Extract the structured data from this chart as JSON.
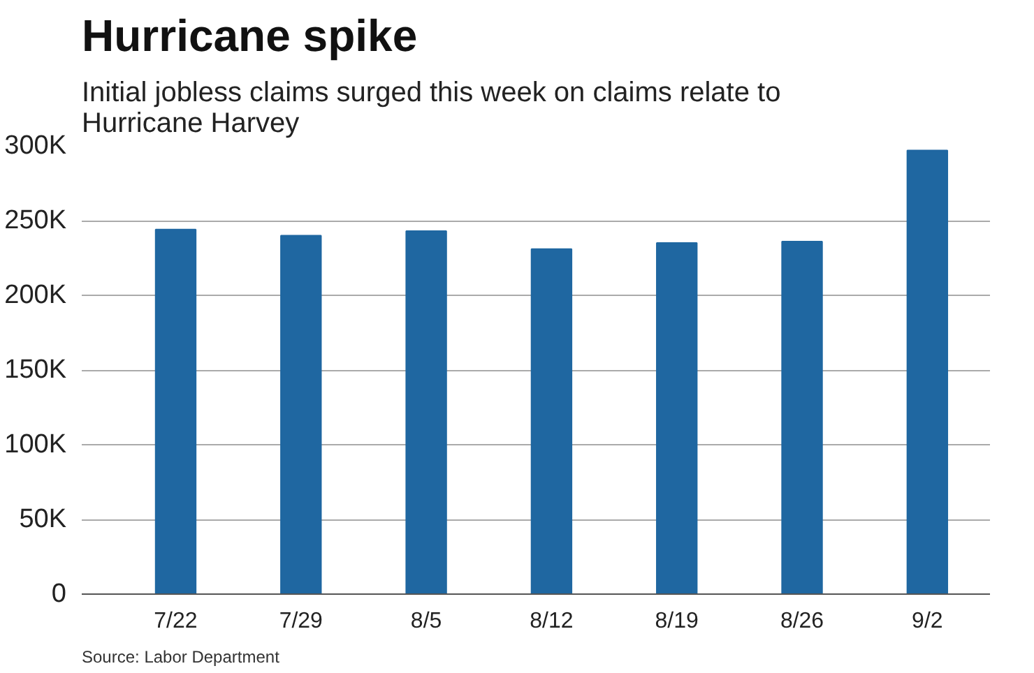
{
  "chart_data": {
    "type": "bar",
    "title": "Hurricane spike",
    "subtitle": "Initial jobless claims surged this week on claims relate to Hurricane Harvey",
    "categories": [
      "7/22",
      "7/29",
      "8/5",
      "8/12",
      "8/19",
      "8/26",
      "9/2"
    ],
    "values": [
      244000,
      240000,
      243000,
      231000,
      235000,
      236000,
      297000
    ],
    "color": "#1f67a1",
    "ylim": [
      0,
      300000
    ],
    "yticks": [
      {
        "value": 0,
        "label": "0"
      },
      {
        "value": 50000,
        "label": "50K"
      },
      {
        "value": 100000,
        "label": "100K"
      },
      {
        "value": 150000,
        "label": "150K"
      },
      {
        "value": 200000,
        "label": "200K"
      },
      {
        "value": 250000,
        "label": "250K"
      },
      {
        "value": 300000,
        "label": "300K"
      }
    ],
    "grid": "y",
    "annotations": [
      "Source: Labor Department"
    ]
  }
}
